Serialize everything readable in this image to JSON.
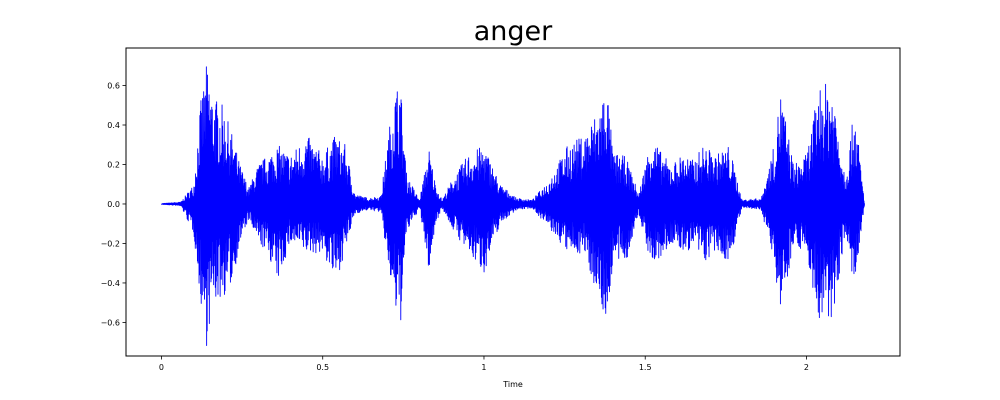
{
  "chart_data": {
    "type": "line",
    "title": "anger",
    "xlabel": "Time",
    "ylabel": "",
    "xlim": [
      -0.11,
      2.29
    ],
    "ylim": [
      -0.77,
      0.79
    ],
    "x_ticks": [
      0,
      0.5,
      1,
      1.5,
      2
    ],
    "x_tick_labels": [
      "0",
      "0.5",
      "1",
      "1.5",
      "2"
    ],
    "y_ticks": [
      -0.6,
      -0.4,
      -0.2,
      0.0,
      0.2,
      0.4,
      0.6
    ],
    "y_tick_labels": [
      "−0.6",
      "−0.4",
      "−0.2",
      "0.0",
      "0.2",
      "0.4",
      "0.6"
    ],
    "grid": false,
    "duration_s": 2.18,
    "series": [
      {
        "color": "#0000ff",
        "envelope": {
          "t": [
            0.0,
            0.06,
            0.1,
            0.12,
            0.14,
            0.16,
            0.19,
            0.22,
            0.24,
            0.27,
            0.3,
            0.33,
            0.36,
            0.4,
            0.45,
            0.5,
            0.54,
            0.57,
            0.6,
            0.64,
            0.68,
            0.72,
            0.74,
            0.76,
            0.8,
            0.83,
            0.85,
            0.87,
            0.9,
            0.95,
            1.0,
            1.05,
            1.1,
            1.15,
            1.2,
            1.26,
            1.31,
            1.36,
            1.38,
            1.4,
            1.44,
            1.48,
            1.52,
            1.55,
            1.58,
            1.62,
            1.65,
            1.68,
            1.72,
            1.76,
            1.8,
            1.86,
            1.9,
            1.92,
            1.96,
            2.0,
            2.04,
            2.08,
            2.12,
            2.15,
            2.18
          ],
          "upper": [
            0.002,
            0.01,
            0.1,
            0.5,
            0.71,
            0.55,
            0.5,
            0.35,
            0.22,
            0.08,
            0.2,
            0.25,
            0.3,
            0.25,
            0.35,
            0.25,
            0.35,
            0.3,
            0.05,
            0.03,
            0.04,
            0.56,
            0.64,
            0.15,
            0.02,
            0.28,
            0.1,
            0.02,
            0.12,
            0.25,
            0.3,
            0.1,
            0.03,
            0.02,
            0.12,
            0.3,
            0.35,
            0.5,
            0.63,
            0.26,
            0.24,
            0.05,
            0.35,
            0.26,
            0.2,
            0.26,
            0.22,
            0.3,
            0.25,
            0.3,
            0.02,
            0.03,
            0.3,
            0.58,
            0.2,
            0.25,
            0.6,
            0.62,
            0.15,
            0.5,
            0.005
          ],
          "lower": [
            -0.002,
            -0.01,
            -0.15,
            -0.48,
            -0.72,
            -0.5,
            -0.48,
            -0.4,
            -0.22,
            -0.08,
            -0.2,
            -0.25,
            -0.4,
            -0.2,
            -0.25,
            -0.25,
            -0.4,
            -0.24,
            -0.05,
            -0.03,
            -0.04,
            -0.52,
            -0.65,
            -0.15,
            -0.02,
            -0.35,
            -0.1,
            -0.02,
            -0.12,
            -0.25,
            -0.35,
            -0.1,
            -0.03,
            -0.02,
            -0.12,
            -0.25,
            -0.25,
            -0.5,
            -0.62,
            -0.3,
            -0.3,
            -0.05,
            -0.32,
            -0.28,
            -0.2,
            -0.25,
            -0.22,
            -0.3,
            -0.25,
            -0.3,
            -0.02,
            -0.03,
            -0.3,
            -0.56,
            -0.2,
            -0.25,
            -0.62,
            -0.6,
            -0.15,
            -0.45,
            -0.005
          ]
        }
      }
    ]
  }
}
